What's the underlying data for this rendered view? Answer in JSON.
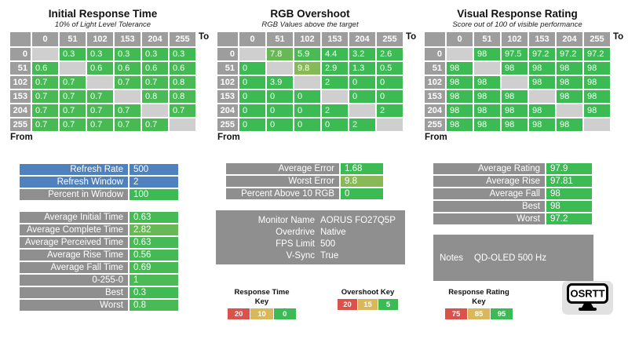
{
  "palette": {
    "green": "#3CBA54",
    "yellow": "#D9B75B",
    "red": "#D9534C",
    "blue": "#4E81BD",
    "header_gray": "#9D9D9D",
    "block_gray": "#8F8F8F",
    "diag_gray": "#CFCFCF",
    "logo_bg": "#E1E1E1",
    "text_on_fill": "#FFFFFF"
  },
  "scales": {
    "time": [
      [
        0,
        "green"
      ],
      [
        10,
        "yellow"
      ],
      [
        20,
        "red"
      ]
    ],
    "overshoot": [
      [
        5,
        "green"
      ],
      [
        15,
        "yellow"
      ],
      [
        20,
        "red"
      ]
    ],
    "rating": [
      [
        95,
        "green"
      ],
      [
        85,
        "yellow"
      ],
      [
        75,
        "red"
      ]
    ]
  },
  "axis": {
    "levels": [
      "0",
      "51",
      "102",
      "153",
      "204",
      "255"
    ],
    "to": "To",
    "from": "From"
  },
  "chart_data": [
    {
      "type": "heatmap",
      "title": "Initial Response Time",
      "subtitle": "10% of Light Level Tolerance",
      "scale": "time",
      "x_levels": [
        0,
        51,
        102,
        153,
        204,
        255
      ],
      "y_levels": [
        0,
        51,
        102,
        153,
        204,
        255
      ],
      "rows": [
        [
          null,
          0.3,
          0.3,
          0.3,
          0.3,
          0.3
        ],
        [
          0.6,
          null,
          0.6,
          0.6,
          0.6,
          0.6
        ],
        [
          0.7,
          0.7,
          null,
          0.7,
          0.7,
          0.8
        ],
        [
          0.7,
          0.7,
          0.7,
          null,
          0.8,
          0.8
        ],
        [
          0.7,
          0.7,
          0.7,
          0.7,
          null,
          0.7
        ],
        [
          0.7,
          0.7,
          0.7,
          0.7,
          0.7,
          null
        ]
      ]
    },
    {
      "type": "heatmap",
      "title": "RGB Overshoot",
      "subtitle": "RGB Values above the target",
      "scale": "overshoot",
      "x_levels": [
        0,
        51,
        102,
        153,
        204,
        255
      ],
      "y_levels": [
        0,
        51,
        102,
        153,
        204,
        255
      ],
      "rows": [
        [
          null,
          7.8,
          5.9,
          4.4,
          3.2,
          2.6
        ],
        [
          0,
          null,
          9.8,
          2.9,
          1.3,
          0.5
        ],
        [
          0,
          3.9,
          null,
          2,
          0,
          0
        ],
        [
          0,
          0,
          0,
          null,
          0,
          0
        ],
        [
          0,
          0,
          0,
          2,
          null,
          2
        ],
        [
          0,
          0,
          0,
          0,
          2,
          null
        ]
      ]
    },
    {
      "type": "heatmap",
      "title": "Visual Response Rating",
      "subtitle": "Score out of 100 of visible performance",
      "scale": "rating",
      "x_levels": [
        0,
        51,
        102,
        153,
        204,
        255
      ],
      "y_levels": [
        0,
        51,
        102,
        153,
        204,
        255
      ],
      "rows": [
        [
          null,
          98,
          97.5,
          97.2,
          97.2,
          97.2
        ],
        [
          98,
          null,
          98,
          98,
          98,
          98
        ],
        [
          98,
          98,
          null,
          98,
          98,
          98
        ],
        [
          98,
          98,
          98,
          null,
          98,
          98
        ],
        [
          98,
          98,
          98,
          98,
          null,
          98
        ],
        [
          98,
          98,
          98,
          98,
          98,
          null
        ]
      ]
    }
  ],
  "summaries": {
    "refresh": {
      "rows": [
        {
          "label": "Refresh Rate",
          "value": "500",
          "style": "blue"
        },
        {
          "label": "Refresh Window",
          "value": "2",
          "style": "blue"
        },
        {
          "label": "Percent in Window",
          "value": "100",
          "style": "green"
        }
      ]
    },
    "times": {
      "scale": "time",
      "rows": [
        {
          "label": "Average Initial Time",
          "value": "0.63"
        },
        {
          "label": "Average Complete Time",
          "value": "2.82"
        },
        {
          "label": "Average Perceived Time",
          "value": "0.63"
        },
        {
          "label": "Average Rise Time",
          "value": "0.56"
        },
        {
          "label": "Average Fall Time",
          "value": "0.69"
        },
        {
          "label": "0-255-0",
          "value": "1"
        },
        {
          "label": "Best",
          "value": "0.3"
        },
        {
          "label": "Worst",
          "value": "0.8"
        }
      ]
    },
    "errors": {
      "scale": "overshoot",
      "rows": [
        {
          "label": "Average Error",
          "value": "1.68"
        },
        {
          "label": "Worst Error",
          "value": "9.8"
        },
        {
          "label": "Percent Above 10 RGB",
          "value": "0"
        }
      ]
    },
    "info": {
      "rows": [
        {
          "label": "Monitor Name",
          "value": "AORUS FO27Q5P"
        },
        {
          "label": "Overdrive",
          "value": "Native"
        },
        {
          "label": "FPS Limit",
          "value": "500"
        },
        {
          "label": "V-Sync",
          "value": "True"
        }
      ]
    },
    "ratings": {
      "scale": "rating",
      "rows": [
        {
          "label": "Average Rating",
          "value": "97.9"
        },
        {
          "label": "Average Rise",
          "value": "97.81"
        },
        {
          "label": "Average Fall",
          "value": "98"
        },
        {
          "label": "Best",
          "value": "98"
        },
        {
          "label": "Worst",
          "value": "97.2"
        }
      ]
    },
    "notes": {
      "label": "Notes",
      "value": "QD-OLED 500 Hz"
    }
  },
  "keys": [
    {
      "title": "Response Time Key",
      "segments": [
        {
          "label": "20",
          "color": "red"
        },
        {
          "label": "10",
          "color": "yellow"
        },
        {
          "label": "0",
          "color": "green"
        }
      ]
    },
    {
      "title": "Overshoot Key",
      "segments": [
        {
          "label": "20",
          "color": "red"
        },
        {
          "label": "15",
          "color": "yellow"
        },
        {
          "label": "5",
          "color": "green"
        }
      ]
    },
    {
      "title": "Response Rating Key",
      "segments": [
        {
          "label": "75",
          "color": "red"
        },
        {
          "label": "85",
          "color": "yellow"
        },
        {
          "label": "95",
          "color": "green"
        }
      ]
    }
  ],
  "logo": {
    "text": "OSRTT"
  }
}
